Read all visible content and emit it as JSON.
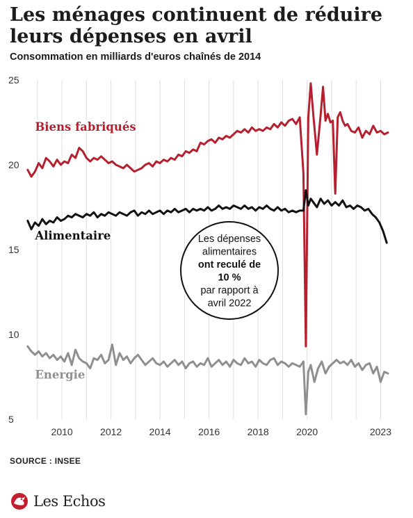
{
  "header": {
    "title": "Les ménages continuent de réduire leurs dépenses en avril",
    "subtitle": "Consommation en milliards d'euros chaînés de 2014"
  },
  "chart_data": {
    "type": "line",
    "ylim": [
      5,
      25
    ],
    "yticks": [
      "25",
      "20",
      "15",
      "10",
      "5"
    ],
    "xlim": [
      2008.55,
      2023.3
    ],
    "xticks": [
      "2010",
      "2012",
      "2014",
      "2016",
      "2018",
      "2020",
      "2023"
    ],
    "grid": "vertical",
    "callout": [
      "Les dépenses",
      "alimentaires",
      "ont reculé de",
      "10 %",
      "par rapport à",
      "avril 2022"
    ],
    "series": [
      {
        "name": "Biens fabriqués",
        "color": "#b51f2e",
        "x": [
          2008.6,
          2008.75,
          2008.9,
          2009.05,
          2009.2,
          2009.35,
          2009.5,
          2009.65,
          2009.8,
          2009.95,
          2010.1,
          2010.25,
          2010.4,
          2010.55,
          2010.7,
          2010.85,
          2011.0,
          2011.15,
          2011.3,
          2011.45,
          2011.6,
          2011.75,
          2011.9,
          2012.05,
          2012.2,
          2012.35,
          2012.5,
          2012.65,
          2012.8,
          2012.95,
          2013.1,
          2013.25,
          2013.4,
          2013.55,
          2013.7,
          2013.85,
          2014.0,
          2014.15,
          2014.3,
          2014.45,
          2014.6,
          2014.75,
          2014.9,
          2015.05,
          2015.2,
          2015.35,
          2015.5,
          2015.65,
          2015.8,
          2015.95,
          2016.1,
          2016.25,
          2016.4,
          2016.55,
          2016.7,
          2016.85,
          2017.0,
          2017.15,
          2017.3,
          2017.45,
          2017.6,
          2017.75,
          2017.9,
          2018.05,
          2018.2,
          2018.35,
          2018.5,
          2018.65,
          2018.8,
          2018.95,
          2019.1,
          2019.25,
          2019.4,
          2019.55,
          2019.7,
          2019.85,
          2019.95,
          2020.05,
          2020.15,
          2020.25,
          2020.4,
          2020.55,
          2020.65,
          2020.75,
          2020.85,
          2020.95,
          2021.05,
          2021.15,
          2021.25,
          2021.35,
          2021.45,
          2021.55,
          2021.65,
          2021.8,
          2021.95,
          2022.1,
          2022.25,
          2022.4,
          2022.55,
          2022.7,
          2022.85,
          2023.0,
          2023.15,
          2023.3
        ],
        "values": [
          19.7,
          19.3,
          19.6,
          20.1,
          19.8,
          20.4,
          20.2,
          19.9,
          20.3,
          20.0,
          20.2,
          20.1,
          20.6,
          20.4,
          21.0,
          20.8,
          20.4,
          20.2,
          20.4,
          20.3,
          20.5,
          20.3,
          20.1,
          20.2,
          20.0,
          19.9,
          19.8,
          20.0,
          19.8,
          19.6,
          19.7,
          19.8,
          20.0,
          20.1,
          19.9,
          20.2,
          20.1,
          20.3,
          20.2,
          20.4,
          20.3,
          20.6,
          20.5,
          20.8,
          20.7,
          20.9,
          20.8,
          21.3,
          21.2,
          21.4,
          21.5,
          21.3,
          21.6,
          21.5,
          21.7,
          21.6,
          21.8,
          22.0,
          21.9,
          22.1,
          21.9,
          22.2,
          22.0,
          22.1,
          22.0,
          22.2,
          22.1,
          22.4,
          22.2,
          22.5,
          22.3,
          22.6,
          22.7,
          22.4,
          22.8,
          19.5,
          9.3,
          22.8,
          24.8,
          23.0,
          20.6,
          22.9,
          24.6,
          22.6,
          23.0,
          22.5,
          22.6,
          18.3,
          22.8,
          23.1,
          22.6,
          22.3,
          22.4,
          22.0,
          21.9,
          22.2,
          21.6,
          22.0,
          21.8,
          22.3,
          21.9,
          22.0,
          21.8,
          21.9
        ]
      },
      {
        "name": "Alimentaire",
        "color": "#111111",
        "x": [
          2008.6,
          2008.75,
          2008.9,
          2009.05,
          2009.2,
          2009.35,
          2009.5,
          2009.65,
          2009.8,
          2009.95,
          2010.1,
          2010.25,
          2010.4,
          2010.55,
          2010.7,
          2010.85,
          2011.0,
          2011.15,
          2011.3,
          2011.45,
          2011.6,
          2011.75,
          2011.9,
          2012.05,
          2012.2,
          2012.35,
          2012.5,
          2012.65,
          2012.8,
          2012.95,
          2013.1,
          2013.25,
          2013.4,
          2013.55,
          2013.7,
          2013.85,
          2014.0,
          2014.15,
          2014.3,
          2014.45,
          2014.6,
          2014.75,
          2014.9,
          2015.05,
          2015.2,
          2015.35,
          2015.5,
          2015.65,
          2015.8,
          2015.95,
          2016.1,
          2016.25,
          2016.4,
          2016.55,
          2016.7,
          2016.85,
          2017.0,
          2017.15,
          2017.3,
          2017.45,
          2017.6,
          2017.75,
          2017.9,
          2018.05,
          2018.2,
          2018.35,
          2018.5,
          2018.65,
          2018.8,
          2018.95,
          2019.1,
          2019.25,
          2019.4,
          2019.55,
          2019.7,
          2019.85,
          2019.95,
          2020.05,
          2020.15,
          2020.25,
          2020.4,
          2020.55,
          2020.7,
          2020.85,
          2021.0,
          2021.15,
          2021.3,
          2021.45,
          2021.6,
          2021.75,
          2021.9,
          2022.05,
          2022.2,
          2022.35,
          2022.5,
          2022.65,
          2022.8,
          2022.95,
          2023.1,
          2023.25
        ],
        "values": [
          16.7,
          16.2,
          16.6,
          16.4,
          16.8,
          16.5,
          16.7,
          16.6,
          16.9,
          16.7,
          16.8,
          17.0,
          16.9,
          17.1,
          17.0,
          16.9,
          17.1,
          17.0,
          17.2,
          16.9,
          17.1,
          17.0,
          17.2,
          17.1,
          17.0,
          17.2,
          17.1,
          17.0,
          17.2,
          17.3,
          17.0,
          17.2,
          17.1,
          17.3,
          17.1,
          17.2,
          17.3,
          17.1,
          17.3,
          17.2,
          17.4,
          17.2,
          17.3,
          17.4,
          17.2,
          17.4,
          17.3,
          17.4,
          17.3,
          17.5,
          17.3,
          17.4,
          17.6,
          17.4,
          17.5,
          17.4,
          17.6,
          17.5,
          17.4,
          17.6,
          17.4,
          17.5,
          17.3,
          17.5,
          17.4,
          17.6,
          17.4,
          17.3,
          17.5,
          17.3,
          17.4,
          17.2,
          17.3,
          17.2,
          17.3,
          17.3,
          18.5,
          17.6,
          18.0,
          17.8,
          17.5,
          18.0,
          17.7,
          17.9,
          17.6,
          17.8,
          17.6,
          17.9,
          17.5,
          17.6,
          17.4,
          17.6,
          17.5,
          17.3,
          17.4,
          17.1,
          16.9,
          16.6,
          16.1,
          15.4
        ]
      },
      {
        "name": "Energie",
        "color": "#8f8f8f",
        "x": [
          2008.6,
          2008.75,
          2008.9,
          2009.05,
          2009.2,
          2009.35,
          2009.5,
          2009.65,
          2009.8,
          2009.95,
          2010.1,
          2010.25,
          2010.4,
          2010.55,
          2010.7,
          2010.85,
          2011.0,
          2011.15,
          2011.3,
          2011.45,
          2011.6,
          2011.75,
          2011.9,
          2012.05,
          2012.2,
          2012.35,
          2012.5,
          2012.65,
          2012.8,
          2012.95,
          2013.1,
          2013.25,
          2013.4,
          2013.55,
          2013.7,
          2013.85,
          2014.0,
          2014.15,
          2014.3,
          2014.45,
          2014.6,
          2014.75,
          2014.9,
          2015.05,
          2015.2,
          2015.35,
          2015.5,
          2015.65,
          2015.8,
          2015.95,
          2016.1,
          2016.25,
          2016.4,
          2016.55,
          2016.7,
          2016.85,
          2017.0,
          2017.15,
          2017.3,
          2017.45,
          2017.6,
          2017.75,
          2017.9,
          2018.05,
          2018.2,
          2018.35,
          2018.5,
          2018.65,
          2018.8,
          2018.95,
          2019.1,
          2019.25,
          2019.4,
          2019.55,
          2019.7,
          2019.85,
          2019.95,
          2020.05,
          2020.15,
          2020.3,
          2020.45,
          2020.6,
          2020.75,
          2020.9,
          2021.05,
          2021.2,
          2021.35,
          2021.5,
          2021.65,
          2021.8,
          2021.95,
          2022.1,
          2022.25,
          2022.4,
          2022.55,
          2022.7,
          2022.85,
          2023.0,
          2023.15,
          2023.3
        ],
        "values": [
          9.3,
          9.0,
          8.8,
          9.0,
          8.7,
          8.9,
          8.6,
          8.8,
          8.5,
          8.7,
          8.4,
          8.9,
          8.2,
          9.1,
          8.6,
          8.4,
          8.3,
          8.0,
          8.6,
          8.5,
          8.8,
          8.3,
          8.5,
          9.4,
          8.2,
          8.9,
          8.5,
          8.7,
          8.3,
          8.6,
          8.8,
          8.5,
          8.2,
          8.4,
          8.6,
          8.3,
          8.2,
          8.4,
          8.1,
          8.3,
          8.5,
          8.2,
          8.4,
          8.0,
          8.3,
          8.4,
          8.1,
          8.3,
          8.2,
          8.6,
          8.1,
          8.3,
          8.5,
          8.2,
          8.4,
          8.1,
          8.5,
          8.3,
          8.2,
          8.6,
          8.3,
          8.4,
          8.1,
          8.5,
          8.3,
          8.2,
          8.5,
          8.6,
          8.2,
          8.4,
          8.3,
          8.1,
          8.3,
          8.2,
          8.1,
          8.4,
          5.3,
          7.8,
          8.2,
          7.2,
          8.0,
          8.4,
          7.7,
          8.1,
          8.3,
          8.5,
          8.3,
          8.4,
          8.2,
          8.5,
          8.1,
          8.3,
          7.9,
          8.2,
          8.3,
          7.7,
          8.1,
          7.2,
          7.8,
          7.7
        ]
      }
    ]
  },
  "footer": {
    "source": "SOURCE : INSEE",
    "logo": "Les Echos"
  }
}
